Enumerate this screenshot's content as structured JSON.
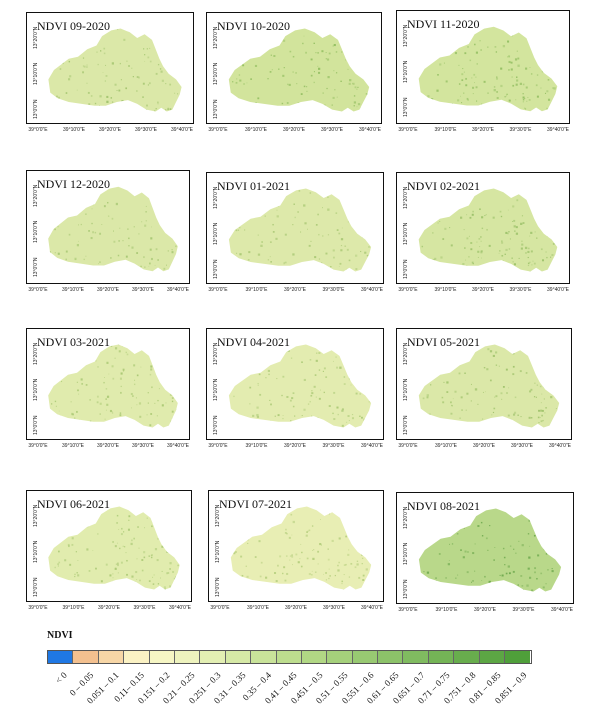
{
  "panels": [
    {
      "title": "NDVI 09-2020",
      "tone": "#dbe8a8",
      "speck": "#9ec16a"
    },
    {
      "title": "NDVI 10-2020",
      "tone": "#d2e49c",
      "speck": "#8dbb5c"
    },
    {
      "title": "NDVI 11-2020",
      "tone": "#d3e59e",
      "speck": "#8fbc5e"
    },
    {
      "title": "NDVI 12-2020",
      "tone": "#dbe8a8",
      "speck": "#a2c46e"
    },
    {
      "title": "NDVI 01-2021",
      "tone": "#dde9aa",
      "speck": "#a6c671"
    },
    {
      "title": "NDVI 02-2021",
      "tone": "#d6e6a2",
      "speck": "#98bf66"
    },
    {
      "title": "NDVI 03-2021",
      "tone": "#e0ebad",
      "speck": "#a5c56f"
    },
    {
      "title": "NDVI 04-2021",
      "tone": "#e3ecb0",
      "speck": "#a7c772"
    },
    {
      "title": "NDVI 05-2021",
      "tone": "#dbe8a8",
      "speck": "#9cc068"
    },
    {
      "title": "NDVI 06-2021",
      "tone": "#e1ecae",
      "speck": "#a8c773"
    },
    {
      "title": "NDVI 07-2021",
      "tone": "#e8eeb4",
      "speck": "#b2cc7a"
    },
    {
      "title": "NDVI 08-2021",
      "tone": "#b9d88a",
      "speck": "#6aa64a"
    }
  ],
  "axis": {
    "lat_labels": [
      "13°20'0\"N",
      "13°10'0\"N",
      "13°0'0\"N"
    ],
    "lon_labels": [
      "39°0'0\"E",
      "39°10'0\"E",
      "39°20'0\"E",
      "39°30'0\"E",
      "39°40'0\"E"
    ]
  },
  "legend": {
    "title": "NDVI",
    "classes": [
      {
        "label": "< 0",
        "color": "#1f78e4"
      },
      {
        "label": "0 – 0.05",
        "color": "#f3c08f"
      },
      {
        "label": "0.051 – 0.1",
        "color": "#f7d6a6"
      },
      {
        "label": "0.11– 0.15",
        "color": "#fbf2c4"
      },
      {
        "label": "0.151 – 0.2",
        "color": "#f6f6c4"
      },
      {
        "label": "0.21 – 0.25",
        "color": "#eef3be"
      },
      {
        "label": "0.251 – 0.3",
        "color": "#e3efb3"
      },
      {
        "label": "0.31 – 0.35",
        "color": "#d6e9a6"
      },
      {
        "label": "0.35 – 0.4",
        "color": "#c9e39a"
      },
      {
        "label": "0.41 – 0.45",
        "color": "#bddd8e"
      },
      {
        "label": "0.451 – 0.5",
        "color": "#b1d784"
      },
      {
        "label": "0.51 – 0.55",
        "color": "#a5d07b"
      },
      {
        "label": "0.551 – 0.6",
        "color": "#98c972"
      },
      {
        "label": "0.61 – 0.65",
        "color": "#8cc269"
      },
      {
        "label": "0.651 – 0.7",
        "color": "#80bb60"
      },
      {
        "label": "0.71 – 0.75",
        "color": "#74b456"
      },
      {
        "label": "0.751 – 0.8",
        "color": "#68ad4d"
      },
      {
        "label": "0.81 – 0.85",
        "color": "#5ca644"
      },
      {
        "label": "0.851 – 0.9",
        "color": "#4f9f3a"
      }
    ]
  }
}
